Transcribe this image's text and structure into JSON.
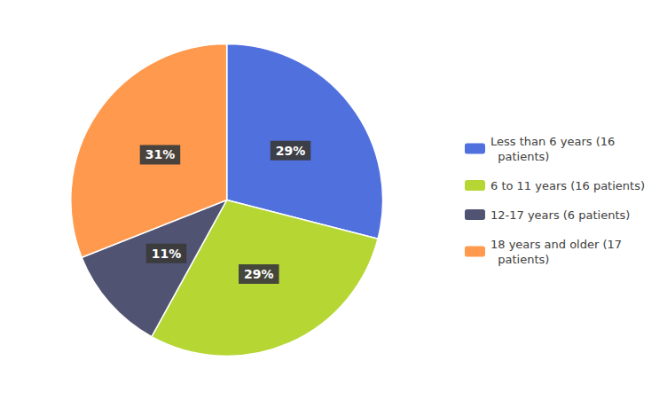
{
  "chart_data": {
    "type": "pie",
    "categories": [
      "Less than 6 years (16\n  patients)",
      "6 to 11 years (16 patients)",
      "12-17 years (6 patients)",
      "18 years and older (17\n  patients)"
    ],
    "values": [
      29,
      29,
      11,
      31
    ],
    "value_labels": [
      "29%",
      "29%",
      "11%",
      "31%"
    ],
    "data_labels": true,
    "legend": "right"
  }
}
